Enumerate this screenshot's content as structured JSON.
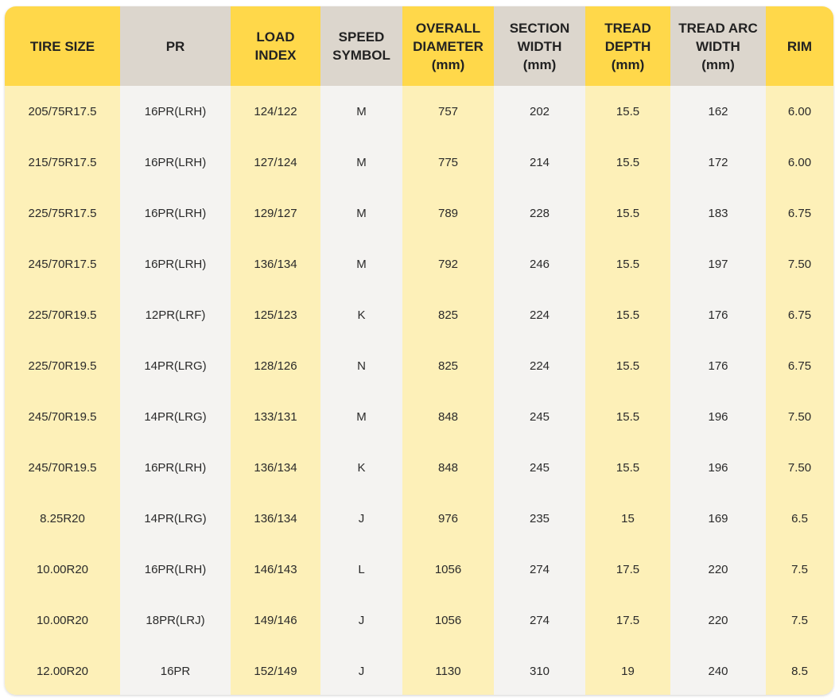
{
  "table": {
    "columns": [
      {
        "label": "TIRE SIZE",
        "tone": "yellow"
      },
      {
        "label": "PR",
        "tone": "gray"
      },
      {
        "label": "LOAD\nINDEX",
        "tone": "yellow"
      },
      {
        "label": "SPEED\nSYMBOL",
        "tone": "gray"
      },
      {
        "label": "OVERALL\nDIAMETER\n(mm)",
        "tone": "yellow"
      },
      {
        "label": "SECTION\nWIDTH\n(mm)",
        "tone": "gray"
      },
      {
        "label": "TREAD\nDEPTH\n(mm)",
        "tone": "yellow"
      },
      {
        "label": "TREAD ARC\nWIDTH\n(mm)",
        "tone": "gray"
      },
      {
        "label": "RIM",
        "tone": "yellow"
      }
    ],
    "rows": [
      [
        "205/75R17.5",
        "16PR(LRH)",
        "124/122",
        "M",
        "757",
        "202",
        "15.5",
        "162",
        "6.00"
      ],
      [
        "215/75R17.5",
        "16PR(LRH)",
        "127/124",
        "M",
        "775",
        "214",
        "15.5",
        "172",
        "6.00"
      ],
      [
        "225/75R17.5",
        "16PR(LRH)",
        "129/127",
        "M",
        "789",
        "228",
        "15.5",
        "183",
        "6.75"
      ],
      [
        "245/70R17.5",
        "16PR(LRH)",
        "136/134",
        "M",
        "792",
        "246",
        "15.5",
        "197",
        "7.50"
      ],
      [
        "225/70R19.5",
        "12PR(LRF)",
        "125/123",
        "K",
        "825",
        "224",
        "15.5",
        "176",
        "6.75"
      ],
      [
        "225/70R19.5",
        "14PR(LRG)",
        "128/126",
        "N",
        "825",
        "224",
        "15.5",
        "176",
        "6.75"
      ],
      [
        "245/70R19.5",
        "14PR(LRG)",
        "133/131",
        "M",
        "848",
        "245",
        "15.5",
        "196",
        "7.50"
      ],
      [
        "245/70R19.5",
        "16PR(LRH)",
        "136/134",
        "K",
        "848",
        "245",
        "15.5",
        "196",
        "7.50"
      ],
      [
        "8.25R20",
        "14PR(LRG)",
        "136/134",
        "J",
        "976",
        "235",
        "15",
        "169",
        "6.5"
      ],
      [
        "10.00R20",
        "16PR(LRH)",
        "146/143",
        "L",
        "1056",
        "274",
        "17.5",
        "220",
        "7.5"
      ],
      [
        "10.00R20",
        "18PR(LRJ)",
        "149/146",
        "J",
        "1056",
        "274",
        "17.5",
        "220",
        "7.5"
      ],
      [
        "12.00R20",
        "16PR",
        "152/149",
        "J",
        "1130",
        "310",
        "19",
        "240",
        "8.5"
      ]
    ]
  },
  "colors": {
    "header_yellow": "#ffd84a",
    "header_gray": "#dcd6cd",
    "body_yellow": "#fdf0b8",
    "body_gray": "#f4f3f1"
  }
}
